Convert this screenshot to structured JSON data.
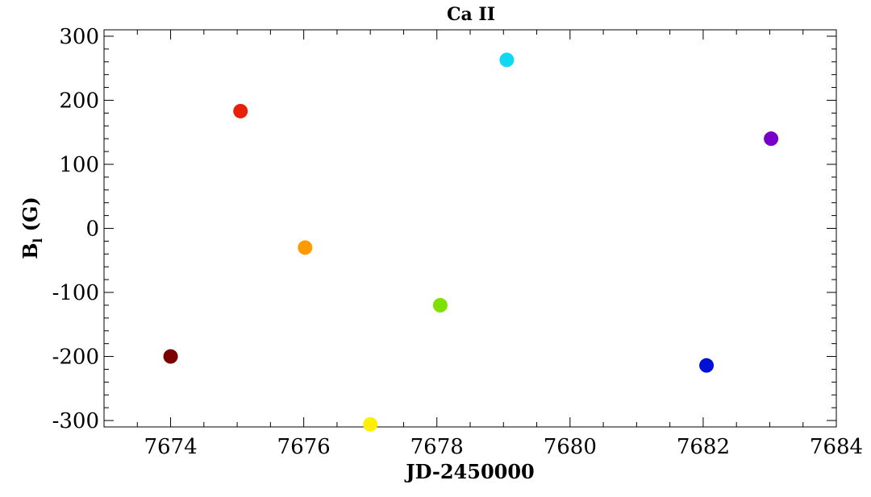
{
  "chart_data": {
    "type": "scatter",
    "title": "Ca II",
    "xlabel": "JD-2450000",
    "ylabel": {
      "main": "B",
      "sub": "l",
      "unit": " (G)"
    },
    "xlim": [
      7673,
      7684
    ],
    "ylim": [
      -310,
      310
    ],
    "xticks": [
      7674,
      7676,
      7678,
      7680,
      7682,
      7684
    ],
    "yticks": [
      -300,
      -200,
      -100,
      0,
      100,
      200,
      300
    ],
    "x_minor_step": 0.5,
    "y_minor_step": 20,
    "grid": false,
    "points": [
      {
        "x": 7674.0,
        "y": -200,
        "color": "#7a0000"
      },
      {
        "x": 7675.05,
        "y": 183,
        "color": "#e8200a"
      },
      {
        "x": 7676.02,
        "y": -30,
        "color": "#ff9a00"
      },
      {
        "x": 7677.0,
        "y": -306,
        "color": "#fff000"
      },
      {
        "x": 7678.05,
        "y": -120,
        "color": "#7ee000"
      },
      {
        "x": 7679.05,
        "y": 263,
        "color": "#10d8f2"
      },
      {
        "x": 7682.05,
        "y": -214,
        "color": "#0010d8"
      },
      {
        "x": 7683.02,
        "y": 140,
        "color": "#7800c8"
      }
    ]
  }
}
